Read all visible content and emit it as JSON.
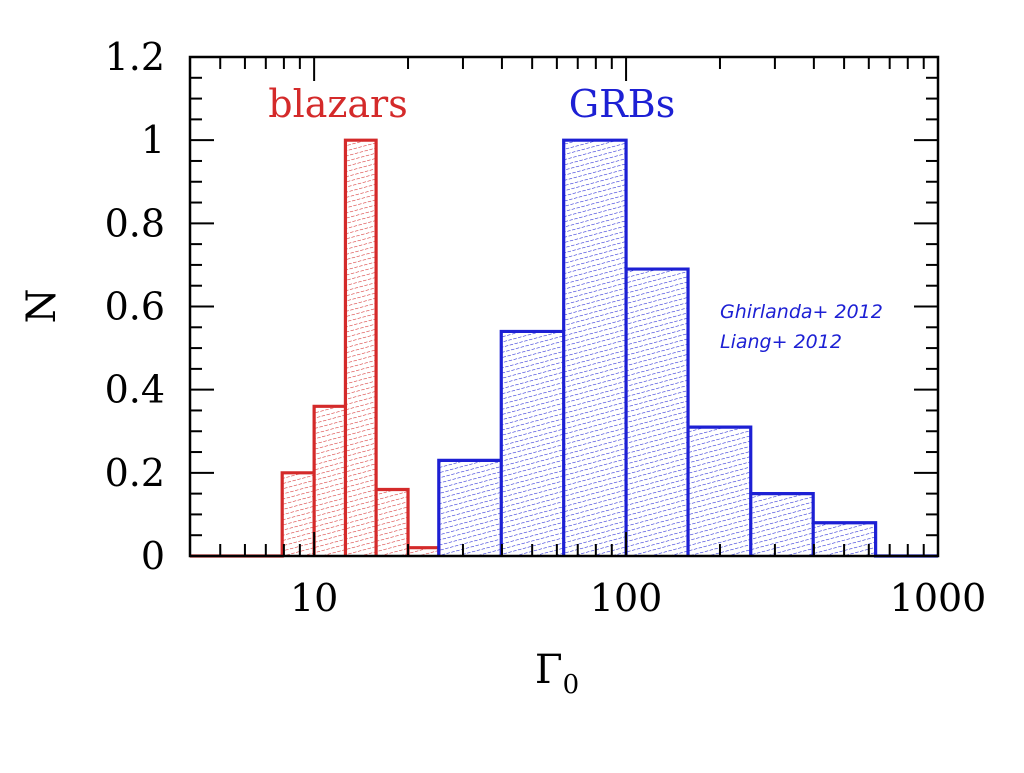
{
  "chart_data": {
    "type": "bar",
    "x_scale": "log",
    "xlim": [
      4,
      1000
    ],
    "ylim": [
      0,
      1.2
    ],
    "xlabel": "Γ",
    "xlabel_subscript": "0",
    "ylabel": "N",
    "x_ticks": [
      {
        "value": 10,
        "label": "10"
      },
      {
        "value": 100,
        "label": "100"
      },
      {
        "value": 1000,
        "label": "1000"
      }
    ],
    "y_ticks": [
      {
        "value": 0,
        "label": "0"
      },
      {
        "value": 0.2,
        "label": "0.2"
      },
      {
        "value": 0.4,
        "label": "0.4"
      },
      {
        "value": 0.6,
        "label": "0.6"
      },
      {
        "value": 0.8,
        "label": "0.8"
      },
      {
        "value": 1.0,
        "label": "1"
      },
      {
        "value": 1.2,
        "label": "1.2"
      }
    ],
    "grid": false,
    "series": [
      {
        "name": "blazars",
        "color": "#d42a2a",
        "bins": [
          {
            "x0": 7.9,
            "x1": 10.0,
            "value": 0.2
          },
          {
            "x0": 10.0,
            "x1": 12.6,
            "value": 0.36
          },
          {
            "x0": 12.6,
            "x1": 15.8,
            "value": 1.0
          },
          {
            "x0": 15.8,
            "x1": 20.0,
            "value": 0.16
          },
          {
            "x0": 20.0,
            "x1": 25.1,
            "value": 0.02
          }
        ]
      },
      {
        "name": "GRBs",
        "color": "#1d20d4",
        "bins": [
          {
            "x0": 25.1,
            "x1": 39.8,
            "value": 0.23
          },
          {
            "x0": 39.8,
            "x1": 63.1,
            "value": 0.54
          },
          {
            "x0": 63.1,
            "x1": 100,
            "value": 1.0
          },
          {
            "x0": 100,
            "x1": 158,
            "value": 0.69
          },
          {
            "x0": 158,
            "x1": 251,
            "value": 0.31
          },
          {
            "x0": 251,
            "x1": 398,
            "value": 0.15
          },
          {
            "x0": 398,
            "x1": 631,
            "value": 0.08
          }
        ]
      }
    ],
    "annotations": [
      "Ghirlanda+ 2012",
      "Liang+ 2012"
    ]
  }
}
